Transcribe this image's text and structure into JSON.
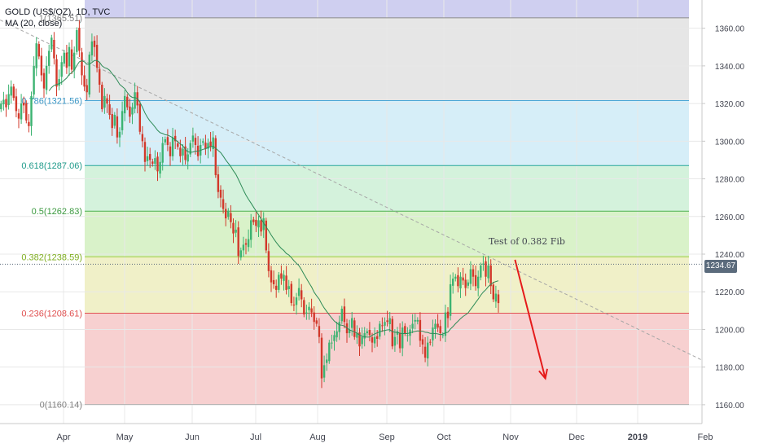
{
  "header": {
    "title": "GOLD (US$/OZ), 1D, TVC",
    "indicator": "MA (20, close)"
  },
  "current_price": "1234.67",
  "colors": {
    "up": "#3cb371",
    "down": "#d2392b",
    "ma": "#2e8b57",
    "trend": "#a6a6a6",
    "arrow": "#e51b1b",
    "price_tag": "#5b6b7c"
  },
  "chart_data": {
    "type": "candlestick",
    "ylim": [
      1150,
      1375
    ],
    "y_ticks": [
      "1360.00",
      "1340.00",
      "1320.00",
      "1300.00",
      "1280.00",
      "1260.00",
      "1240.00",
      "1220.00",
      "1200.00",
      "1180.00",
      "1160.00"
    ],
    "x_ticks": [
      "Apr",
      "May",
      "Jun",
      "Jul",
      "Aug",
      "Sep",
      "Oct",
      "Nov",
      "Dec",
      "2019",
      "Feb"
    ],
    "fib_levels": [
      {
        "label": "0(1160.14)",
        "value": 1160.14,
        "fill": "#f7d0d0",
        "line": "#b0b0b0",
        "text_color": "#808080"
      },
      {
        "label": "0.236(1208.61)",
        "value": 1208.61,
        "fill": "#f0f0c8",
        "line": "#e05050",
        "text_color": "#e05050"
      },
      {
        "label": "0.382(1238.59)",
        "value": 1238.59,
        "fill": "#d9f2c9",
        "line": "#9ccc40",
        "text_color": "#7fae20"
      },
      {
        "label": "0.5(1262.83)",
        "value": 1262.83,
        "fill": "#d4f2dc",
        "line": "#4caf50",
        "text_color": "#3c9a40"
      },
      {
        "label": "0.618(1287.06)",
        "value": 1287.06,
        "fill": "#d6eef8",
        "line": "#26a69a",
        "text_color": "#1e9a8a"
      },
      {
        "label": "0.786(1321.56)",
        "value": 1321.56,
        "fill": "#e6e6e6",
        "line": "#4aa6d6",
        "text_color": "#3a96c6"
      },
      {
        "label": "1(1365.51)",
        "value": 1365.51,
        "fill": "#d2d2ee",
        "line": "#8a8a8a",
        "text_color": "#808080"
      }
    ],
    "top_band_fill": "#cfcff0",
    "annotation": "Test of 0.382 Fib",
    "trendline": {
      "start_day": -4,
      "start": 1367,
      "end_day": 313,
      "end": 1161
    },
    "arrow": {
      "start_day": 204,
      "start": 1237,
      "end_day": 216,
      "end": 1174
    },
    "closes": [
      1320,
      1322,
      1318,
      1325,
      1329,
      1323,
      1316,
      1312,
      1320,
      1319,
      1311,
      1308,
      1324,
      1340,
      1352,
      1345,
      1335,
      1328,
      1340,
      1348,
      1355,
      1344,
      1329,
      1333,
      1342,
      1347,
      1339,
      1350,
      1338,
      1347,
      1359,
      1348,
      1335,
      1329,
      1326,
      1346,
      1353,
      1350,
      1339,
      1330,
      1317,
      1324,
      1320,
      1314,
      1307,
      1314,
      1302,
      1305,
      1316,
      1324,
      1318,
      1313,
      1318,
      1326,
      1319,
      1305,
      1300,
      1289,
      1292,
      1290,
      1288,
      1291,
      1284,
      1289,
      1299,
      1301,
      1298,
      1292,
      1302,
      1300,
      1297,
      1292,
      1296,
      1290,
      1293,
      1299,
      1303,
      1298,
      1292,
      1298,
      1300,
      1296,
      1299,
      1297,
      1302,
      1282,
      1273,
      1270,
      1264,
      1259,
      1263,
      1257,
      1251,
      1253,
      1239,
      1242,
      1245,
      1245,
      1248,
      1258,
      1257,
      1255,
      1258,
      1252,
      1259,
      1242,
      1231,
      1225,
      1224,
      1221,
      1229,
      1227,
      1229,
      1221,
      1223,
      1214,
      1213,
      1217,
      1222,
      1216,
      1208,
      1209,
      1212,
      1209,
      1204,
      1203,
      1196,
      1174,
      1181,
      1184,
      1193,
      1193,
      1197,
      1199,
      1204,
      1211,
      1204,
      1198,
      1200,
      1206,
      1196,
      1198,
      1191,
      1196,
      1198,
      1199,
      1197,
      1193,
      1196,
      1195,
      1203,
      1202,
      1204,
      1204,
      1206,
      1191,
      1196,
      1199,
      1190,
      1201,
      1198,
      1197,
      1200,
      1203,
      1205,
      1205,
      1194,
      1192,
      1185,
      1193,
      1193,
      1201,
      1203,
      1201,
      1198,
      1197,
      1209,
      1206,
      1224,
      1227,
      1228,
      1223,
      1228,
      1226,
      1222,
      1225,
      1232,
      1228,
      1223,
      1228,
      1234,
      1235,
      1228,
      1234,
      1223,
      1216,
      1219,
      1214
    ]
  }
}
